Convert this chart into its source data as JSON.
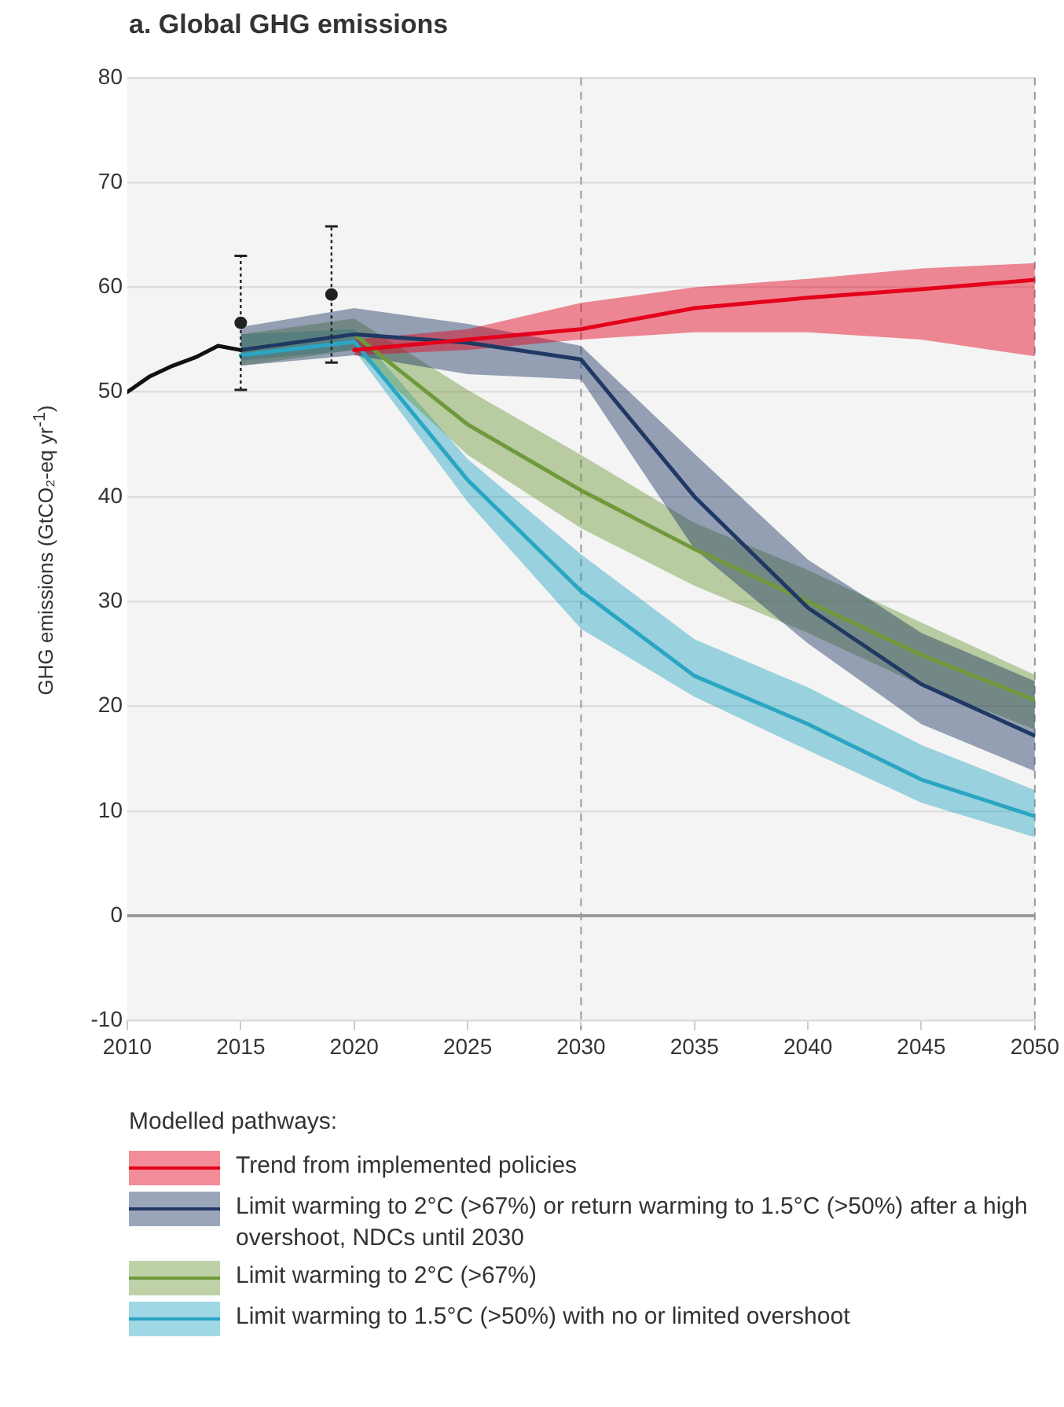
{
  "chart_data": {
    "type": "line",
    "title": "a. Global GHG emissions",
    "ylabel": "GHG emissions (GtCO₂-eq yr$^{-1}$)",
    "legend_title": "Modelled pathways:",
    "xlim": [
      2010,
      2050
    ],
    "xticks": [
      2010,
      2015,
      2020,
      2025,
      2030,
      2035,
      2040,
      2045,
      2050
    ],
    "ylim": [
      -10,
      80
    ],
    "yticks": [
      -10,
      0,
      10,
      20,
      30,
      40,
      50,
      60,
      70,
      80
    ],
    "grid": "y",
    "legend": "bottom",
    "marker": "none",
    "line_style": "solid",
    "series": [
      {
        "color": "#111111",
        "x": [
          2010,
          2011,
          2012,
          2013,
          2014,
          2015
        ],
        "values": [
          50,
          51.5,
          52.5,
          53.3,
          54.4,
          54
        ]
      },
      {
        "type": "scatter",
        "marker": "circle",
        "color": "#222222",
        "x": [
          2015,
          2019
        ],
        "values": [
          56.6,
          59.3
        ],
        "errors": [
          [
            50.2,
            63
          ],
          [
            52.8,
            65.8
          ]
        ]
      },
      {
        "name": "Trend from implemented policies",
        "color": "#e3001b",
        "x": [
          2020,
          2025,
          2030,
          2035,
          2040,
          2045,
          2050
        ],
        "values": [
          54,
          55,
          56,
          58,
          59,
          59.8,
          60.7
        ],
        "lower": [
          53.5,
          54,
          55,
          55.7,
          55.7,
          55,
          53.4
        ],
        "upper": [
          55,
          56,
          58.5,
          60,
          60.8,
          61.8,
          62.3
        ]
      },
      {
        "name": "Limit warming to 2°C (>67%) or return warming to 1.5°C (>50%) after a high overshoot, NDCs until 2030",
        "color": "#1f3864",
        "x": [
          2015,
          2020,
          2025,
          2030,
          2035,
          2040,
          2045,
          2050
        ],
        "values": [
          54,
          55.5,
          54.7,
          53.1,
          40,
          29.4,
          22.1,
          17.2
        ],
        "lower": [
          52.5,
          53.5,
          51.7,
          51.2,
          35,
          26,
          18.3,
          13.8
        ],
        "upper": [
          56.2,
          58,
          56.5,
          54.4,
          44.1,
          34,
          27,
          22.4
        ]
      },
      {
        "name": "Limit warming to 2°C (>67%)",
        "color": "#6f9a3c",
        "x": [
          2015,
          2020,
          2025,
          2030,
          2035,
          2040,
          2045,
          2050
        ],
        "values": [
          54,
          55.5,
          46.9,
          40.6,
          35,
          30,
          24.9,
          20.6
        ],
        "lower": [
          52.5,
          54,
          44,
          37,
          31.5,
          27,
          22,
          17.8
        ],
        "upper": [
          55.5,
          57,
          50.2,
          44,
          37.5,
          33,
          28,
          23
        ]
      },
      {
        "name": "Limit warming to 1.5°C (>50%) with no or limited overshoot",
        "color": "#2aa6c4",
        "x": [
          2015,
          2020,
          2025,
          2030,
          2035,
          2040,
          2045,
          2050
        ],
        "values": [
          53.5,
          54.8,
          41.6,
          31,
          22.9,
          18.3,
          13,
          9.5
        ],
        "lower": [
          53,
          54,
          39.5,
          27.4,
          20.9,
          15.8,
          10.8,
          7.5
        ],
        "upper": [
          55.5,
          56,
          43.6,
          34.5,
          26.4,
          21.8,
          16.3,
          12
        ]
      }
    ],
    "ref_lines": [
      {
        "axis": "y",
        "value": 0,
        "color": "#999999",
        "line_style": "solid"
      },
      {
        "axis": "x",
        "value": 2030,
        "color": "#999999",
        "line_style": "dashed"
      },
      {
        "axis": "x",
        "value": 2050,
        "color": "#999999",
        "line_style": "dashed"
      }
    ]
  }
}
